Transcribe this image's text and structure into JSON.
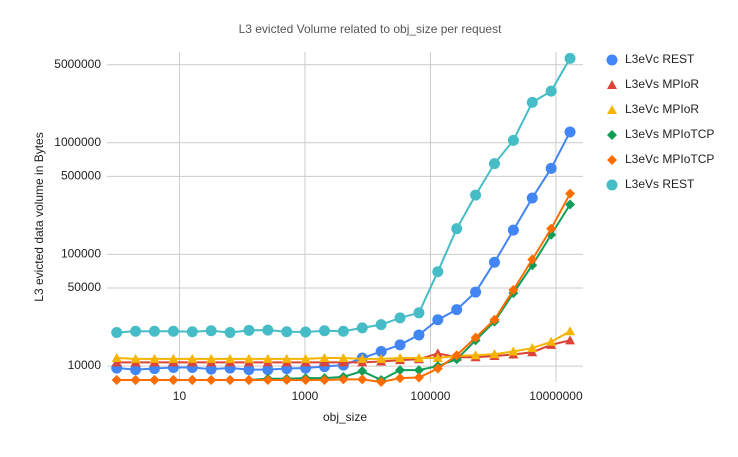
{
  "chart_data": {
    "type": "line",
    "title": "L3 evicted Volume related to obj_size per request",
    "x_label": "obj_size",
    "y_label": "L3 evicted data volume in Bytes",
    "x_log": true,
    "y_log": true,
    "grid": true,
    "legend": "right",
    "x": [
      1,
      2,
      4,
      8,
      16,
      32,
      64,
      128,
      256,
      512,
      1024,
      2048,
      4096,
      8192,
      16384,
      32768,
      65536,
      131072,
      262144,
      524288,
      1048576,
      2097152,
      4194304,
      8388608,
      16777216
    ],
    "xlim": [
      0.7,
      27000000
    ],
    "xticks": [
      10,
      1000,
      100000,
      10000000
    ],
    "ylim": [
      7200,
      6500000
    ],
    "yticks": [
      10000,
      50000,
      100000,
      500000,
      1000000,
      5000000
    ],
    "series": [
      {
        "name": "L3eVc REST",
        "color": "#4285f4",
        "marker": "circle",
        "values": [
          9600,
          9300,
          9500,
          9700,
          9700,
          9400,
          9600,
          9300,
          9300,
          9500,
          9600,
          9900,
          10200,
          11800,
          13500,
          15500,
          19000,
          26000,
          32000,
          46000,
          85000,
          165000,
          320000,
          590000,
          1250000
        ]
      },
      {
        "name": "L3eVs MPIoR",
        "color": "#db4437",
        "marker": "triangle",
        "values": [
          10800,
          10800,
          10800,
          10800,
          10800,
          10800,
          10800,
          10800,
          10800,
          10800,
          10800,
          10800,
          10800,
          10800,
          11000,
          11300,
          11500,
          13000,
          12000,
          12000,
          12300,
          12700,
          13300,
          15500,
          17000
        ]
      },
      {
        "name": "L3eVc MPIoR",
        "color": "#f4b400",
        "marker": "triangle",
        "values": [
          11800,
          11600,
          11600,
          11600,
          11600,
          11600,
          11600,
          11600,
          11600,
          11600,
          11600,
          11800,
          11800,
          11600,
          11600,
          11800,
          11800,
          11800,
          12300,
          12500,
          12800,
          13500,
          14500,
          16500,
          20500
        ]
      },
      {
        "name": "L3eVs MPIoTCP",
        "color": "#0f9d58",
        "marker": "diamond",
        "values": [
          7500,
          7500,
          7500,
          7500,
          7500,
          7500,
          7500,
          7500,
          7700,
          7700,
          7800,
          7800,
          8000,
          9000,
          7500,
          9200,
          9200,
          10000,
          11500,
          17000,
          25000,
          45000,
          80000,
          150000,
          280000
        ]
      },
      {
        "name": "L3eVc  MPIoTCP",
        "color": "#ff6d00",
        "marker": "diamond",
        "values": [
          7500,
          7500,
          7500,
          7500,
          7500,
          7500,
          7500,
          7500,
          7500,
          7500,
          7500,
          7500,
          7600,
          7600,
          7200,
          7800,
          7900,
          9500,
          12500,
          18000,
          26000,
          48000,
          90000,
          170000,
          350000
        ]
      },
      {
        "name": "L3eVs REST",
        "color": "#46bdc6",
        "marker": "circle",
        "values": [
          20000,
          20500,
          20500,
          20500,
          20300,
          20700,
          20000,
          20900,
          21000,
          20300,
          20200,
          20700,
          20500,
          22000,
          23500,
          27000,
          30000,
          70000,
          170000,
          340000,
          650000,
          1050000,
          2300000,
          2900000,
          5700000
        ]
      }
    ]
  }
}
